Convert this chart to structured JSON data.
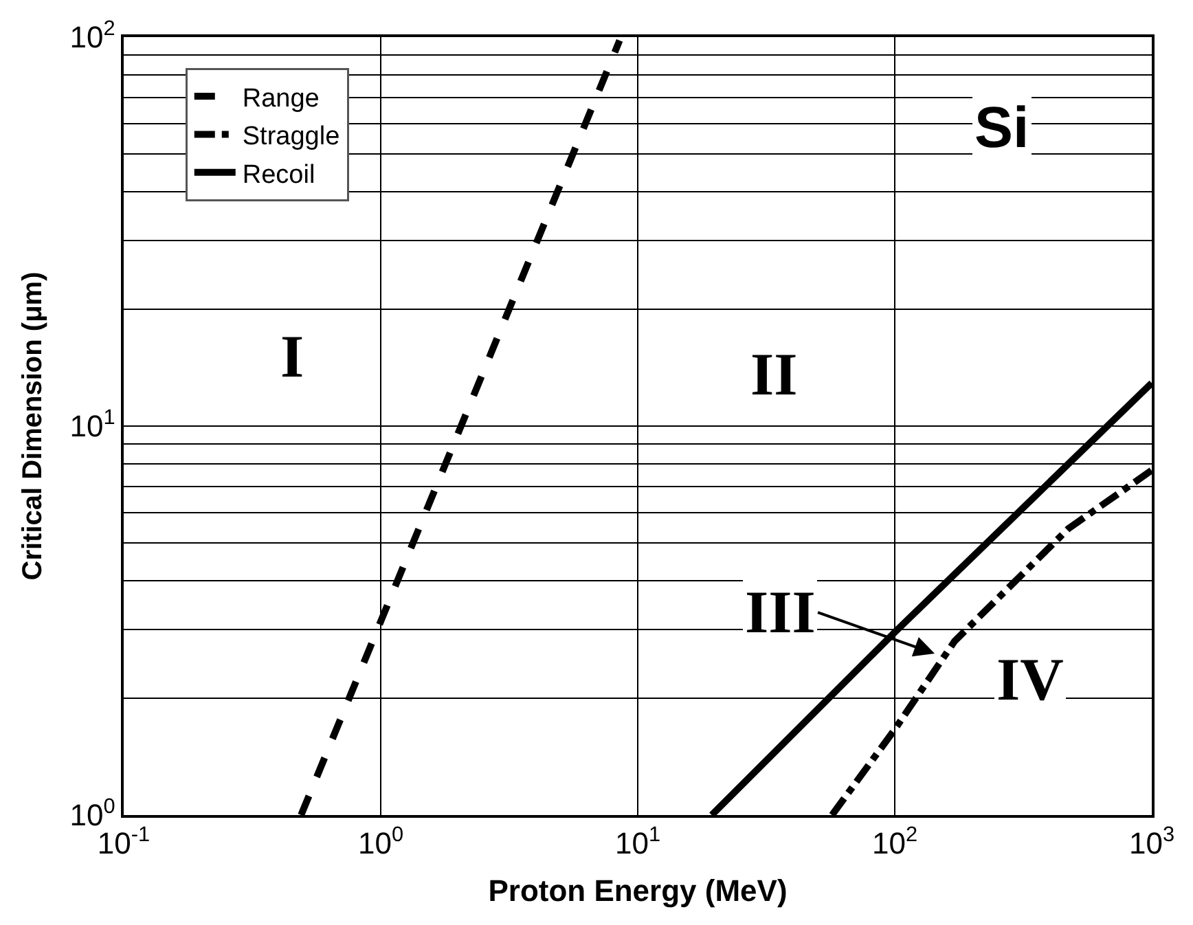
{
  "chart_data": {
    "type": "line",
    "xlabel": "Proton Energy (MeV)",
    "ylabel": "Critical Dimension (μm)",
    "log": "xy",
    "grid": true,
    "legend": "top left",
    "xlim": [
      0.1,
      1000
    ],
    "ylim": [
      1,
      100
    ],
    "xticks": [
      {
        "value": 0.1,
        "label": "10$^{-1}$"
      },
      {
        "value": 1,
        "label": "10$^{0}$"
      },
      {
        "value": 10,
        "label": "10$^{1}$"
      },
      {
        "value": 100,
        "label": "10$^{2}$"
      },
      {
        "value": 1000,
        "label": "10$^{3}$"
      }
    ],
    "yticks": [
      {
        "value": 1,
        "label": "10$^{0}$"
      },
      {
        "value": 2,
        "label": null
      },
      {
        "value": 3,
        "label": null
      },
      {
        "value": 4,
        "label": null
      },
      {
        "value": 5,
        "label": null
      },
      {
        "value": 6,
        "label": null
      },
      {
        "value": 7,
        "label": null
      },
      {
        "value": 8,
        "label": null
      },
      {
        "value": 9,
        "label": null
      },
      {
        "value": 10,
        "label": "10$^{1}$"
      },
      {
        "value": 20,
        "label": null
      },
      {
        "value": 30,
        "label": null
      },
      {
        "value": 40,
        "label": null
      },
      {
        "value": 50,
        "label": null
      },
      {
        "value": 60,
        "label": null
      },
      {
        "value": 70,
        "label": null
      },
      {
        "value": 80,
        "label": null
      },
      {
        "value": 90,
        "label": null
      },
      {
        "value": 100,
        "label": "10$^{2}$"
      }
    ],
    "series": [
      {
        "name": "Range",
        "color": "#000000",
        "line_style": "dashed",
        "x": [
          0.49,
          8.5
        ],
        "values": [
          1,
          98
        ]
      },
      {
        "name": "Straggle",
        "color": "#000000",
        "line_style": "dashdot",
        "x": [
          57,
          100,
          171,
          474,
          1000
        ],
        "values": [
          1,
          1.66,
          2.8,
          5.45,
          7.7
        ]
      },
      {
        "name": "Recoil",
        "color": "#000000",
        "line_style": "solid",
        "x": [
          19.4,
          100,
          1000
        ],
        "values": [
          1,
          2.95,
          12.9
        ]
      }
    ],
    "annotations": [
      "I",
      "II",
      {
        "text": "III",
        "x": 143,
        "y": 2.6
      },
      "IV",
      "Si"
    ]
  }
}
